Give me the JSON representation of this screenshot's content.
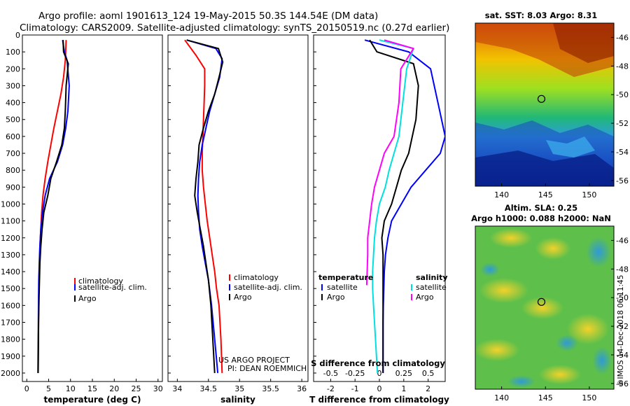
{
  "title_line1": "Argo profile: aoml 1901613_124 19-May-2015 50.3S 144.54E (DM data)",
  "title_line2": "Climatology: CARS2009. Satellite-adjusted climatology: synTS_20150519.nc (0.27d earlier)",
  "y_ticks": [
    "0",
    "100",
    "200",
    "300",
    "400",
    "500",
    "600",
    "700",
    "800",
    "900",
    "1000",
    "1100",
    "1200",
    "1300",
    "1400",
    "1500",
    "1600",
    "1700",
    "1800",
    "1900",
    "2000"
  ],
  "panels": {
    "temp": {
      "xlabel": "temperature (deg C)",
      "x_ticks": [
        "0",
        "5",
        "10",
        "15",
        "20",
        "25",
        "30"
      ],
      "legend": [
        "climatology",
        "satellite-adj. clim.",
        "Argo"
      ]
    },
    "sal": {
      "xlabel": "salinity",
      "x_ticks": [
        "34",
        "34.5",
        "35",
        "35.5",
        "36"
      ],
      "legend": [
        "climatology",
        "satellite-adj. clim.",
        "Argo"
      ],
      "credit1": "US ARGO PROJECT",
      "credit2": "PI: DEAN ROEMMICH"
    },
    "diff": {
      "xlabel": "T difference from climatology",
      "x_ticks": [
        "-2",
        "-1",
        "0",
        "1",
        "2"
      ],
      "s_header": "S difference from climatology",
      "s_ticks": [
        "-0.5",
        "-0.25",
        "0",
        "0.25",
        "0.5"
      ],
      "legend_t_title": "temperature",
      "legend_t": [
        "satellite",
        "Argo"
      ],
      "legend_s_title": "salinity",
      "legend_s": [
        "satellite",
        "Argo"
      ]
    }
  },
  "maps": {
    "sst_title": "sat. SST: 8.03 Argo: 8.31",
    "sla_title1": "Altim. SLA: 0.25",
    "sla_title2": "Argo h1000: 0.088 h2000: NaN",
    "lat_ticks": [
      "-46",
      "-48",
      "-50",
      "-52",
      "-54",
      "-56"
    ],
    "lon_ticks": [
      "140",
      "145",
      "150"
    ],
    "float_lon": 144.54,
    "float_lat": -50.3
  },
  "footer": "©IMOS 14-Dec-2018 06:11:45",
  "colors": {
    "climatology": "#ff0000",
    "satellite": "#0000ff",
    "argo": "#000000",
    "s_satellite": "#00e0e0",
    "s_argo": "#ff00ff"
  },
  "chart_data": [
    {
      "type": "line",
      "title": "",
      "xlabel": "temperature (deg C)",
      "ylabel": "",
      "xlim": [
        -1,
        31
      ],
      "ylim": [
        2050,
        0
      ],
      "series": [
        {
          "name": "climatology",
          "color": "#ff0000",
          "x": [
            9.0,
            8.8,
            8.4,
            7.8,
            7.0,
            6.2,
            5.5,
            4.8,
            4.2,
            3.7,
            3.4,
            3.2,
            3.0,
            2.9,
            2.8,
            2.75,
            2.7,
            2.65,
            2.6
          ],
          "y": [
            30,
            150,
            250,
            350,
            450,
            550,
            650,
            750,
            850,
            950,
            1050,
            1150,
            1250,
            1350,
            1450,
            1550,
            1700,
            1850,
            2000
          ]
        },
        {
          "name": "satellite-adj. clim.",
          "color": "#0000ff",
          "x": [
            8.2,
            8.6,
            9.2,
            9.7,
            9.4,
            8.9,
            8.2,
            7.0,
            5.2,
            4.2,
            3.6,
            3.2,
            3.0,
            2.85,
            2.75,
            2.7,
            2.65,
            2.6,
            2.55
          ],
          "y": [
            30,
            100,
            150,
            300,
            450,
            550,
            650,
            750,
            850,
            950,
            1050,
            1150,
            1250,
            1350,
            1450,
            1550,
            1700,
            1850,
            2000
          ]
        },
        {
          "name": "Argo",
          "color": "#000000",
          "x": [
            8.3,
            8.4,
            9.5,
            9.0,
            8.8,
            8.6,
            8.0,
            6.8,
            5.5,
            4.8,
            3.9,
            3.5,
            3.2,
            3.0,
            2.9,
            2.8,
            2.7,
            2.65,
            2.6
          ],
          "y": [
            30,
            100,
            170,
            300,
            450,
            550,
            650,
            750,
            850,
            950,
            1050,
            1150,
            1250,
            1350,
            1450,
            1550,
            1700,
            1850,
            2000
          ]
        }
      ]
    },
    {
      "type": "line",
      "title": "",
      "xlabel": "salinity",
      "ylabel": "",
      "xlim": [
        33.85,
        36.1
      ],
      "ylim": [
        2050,
        0
      ],
      "series": [
        {
          "name": "climatology",
          "color": "#ff0000",
          "x": [
            34.12,
            34.3,
            34.44,
            34.44,
            34.43,
            34.42,
            34.41,
            34.4,
            34.4,
            34.42,
            34.45,
            34.48,
            34.52,
            34.56,
            34.6,
            34.63,
            34.67,
            34.7,
            34.72
          ],
          "y": [
            30,
            120,
            200,
            300,
            400,
            500,
            600,
            700,
            800,
            900,
            1000,
            1100,
            1200,
            1300,
            1400,
            1500,
            1600,
            1800,
            2000
          ]
        },
        {
          "name": "satellite-adj. clim.",
          "color": "#0000ff",
          "x": [
            34.15,
            34.62,
            34.72,
            34.68,
            34.6,
            34.52,
            34.46,
            34.4,
            34.36,
            34.34,
            34.33,
            34.34,
            34.36,
            34.4,
            34.45,
            34.5,
            34.55,
            34.6,
            34.65
          ],
          "y": [
            30,
            80,
            140,
            250,
            350,
            450,
            550,
            650,
            750,
            850,
            950,
            1050,
            1150,
            1250,
            1350,
            1450,
            1600,
            1800,
            2000
          ]
        },
        {
          "name": "Argo",
          "color": "#000000",
          "x": [
            34.15,
            34.66,
            34.73,
            34.67,
            34.6,
            34.5,
            34.42,
            34.35,
            34.33,
            34.3,
            34.28,
            34.32,
            34.37,
            34.42,
            34.46,
            34.5,
            34.54,
            34.57,
            34.6
          ],
          "y": [
            30,
            80,
            160,
            250,
            350,
            450,
            550,
            650,
            750,
            850,
            950,
            1050,
            1150,
            1250,
            1350,
            1450,
            1600,
            1800,
            2000
          ]
        }
      ]
    },
    {
      "type": "line",
      "title": "",
      "xlabel": "T difference from climatology",
      "ylabel": "",
      "xlim": [
        -2.7,
        2.7
      ],
      "ylim": [
        2050,
        0
      ],
      "series": [
        {
          "name": "temperature satellite",
          "color": "#0000ff",
          "x": [
            -0.6,
            1.2,
            2.1,
            2.4,
            2.7,
            2.5,
            1.9,
            1.3,
            0.9,
            0.5,
            0.35,
            0.25,
            0.2,
            0.18,
            0.16,
            0.15,
            0.15,
            0.15,
            0.15
          ],
          "y": [
            30,
            100,
            200,
            400,
            600,
            700,
            800,
            900,
            1000,
            1100,
            1200,
            1300,
            1400,
            1500,
            1600,
            1700,
            1800,
            1900,
            2000
          ]
        },
        {
          "name": "temperature Argo",
          "color": "#000000",
          "x": [
            -0.4,
            -0.1,
            1.4,
            1.6,
            1.5,
            1.2,
            0.9,
            0.7,
            0.5,
            0.2,
            0.1,
            0.15,
            0.15,
            0.15,
            0.15,
            0.15,
            0.15,
            0.15,
            0.15
          ],
          "y": [
            30,
            100,
            170,
            300,
            500,
            700,
            800,
            900,
            1000,
            1100,
            1200,
            1300,
            1400,
            1500,
            1600,
            1700,
            1800,
            1900,
            2000
          ]
        }
      ]
    },
    {
      "type": "line",
      "title": "",
      "xlabel": "S difference from climatology",
      "ylabel": "",
      "xlim": [
        -0.675,
        0.675
      ],
      "ylim": [
        2050,
        0
      ],
      "series": [
        {
          "name": "salinity satellite",
          "color": "#00e0e0",
          "x": [
            0.0,
            0.35,
            0.28,
            0.24,
            0.2,
            0.15,
            0.1,
            0.06,
            0.0,
            -0.03,
            -0.05,
            -0.06,
            -0.07,
            -0.07,
            -0.06,
            -0.05,
            -0.04,
            -0.03,
            -0.02
          ],
          "y": [
            30,
            80,
            200,
            400,
            600,
            700,
            800,
            900,
            1000,
            1100,
            1200,
            1300,
            1400,
            1500,
            1600,
            1700,
            1800,
            1900,
            2000
          ]
        },
        {
          "name": "salinity Argo",
          "color": "#ff00ff",
          "x": [
            0.05,
            0.35,
            0.22,
            0.2,
            0.15,
            0.05,
            0.0,
            -0.05,
            -0.08,
            -0.1,
            -0.12,
            -0.12,
            -0.13
          ],
          "y": [
            30,
            80,
            200,
            400,
            600,
            700,
            800,
            900,
            1000,
            1100,
            1200,
            1300,
            1480
          ]
        }
      ]
    }
  ]
}
